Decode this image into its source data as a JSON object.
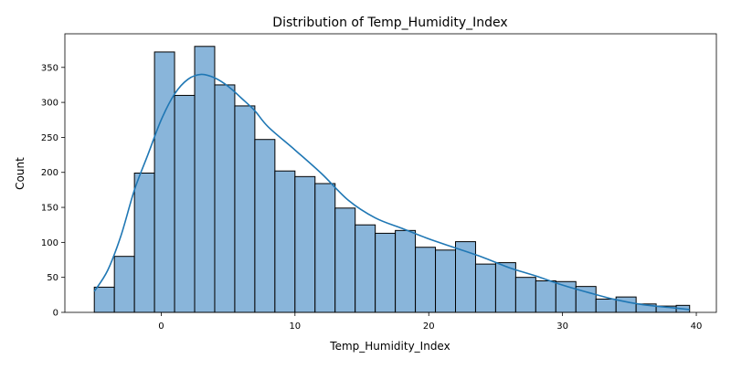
{
  "chart_data": {
    "type": "bar",
    "title": "Distribution of Temp_Humidity_Index",
    "xlabel": "Temp_Humidity_Index",
    "ylabel": "Count",
    "xlim": [
      -7.2,
      41.5
    ],
    "ylim": [
      0,
      398
    ],
    "x_ticks": [
      0,
      10,
      20,
      30,
      40
    ],
    "y_ticks": [
      0,
      50,
      100,
      150,
      200,
      250,
      300,
      350
    ],
    "grid": false,
    "legend": "none",
    "bins": {
      "edges": [
        -5.0,
        -3.5,
        -2.0,
        -0.5,
        1.0,
        2.5,
        4.0,
        5.5,
        7.0,
        8.5,
        10.0,
        11.5,
        13.0,
        14.5,
        16.0,
        17.5,
        19.0,
        20.5,
        22.0,
        23.5,
        25.0,
        26.5,
        28.0,
        29.5,
        31.0,
        32.5,
        34.0,
        35.5,
        37.0,
        38.5,
        39.5
      ],
      "counts": [
        36,
        80,
        199,
        372,
        310,
        380,
        325,
        295,
        247,
        202,
        194,
        184,
        149,
        125,
        113,
        117,
        93,
        89,
        101,
        69,
        71,
        50,
        45,
        44,
        37,
        19,
        22,
        12,
        9,
        10
      ]
    },
    "kde": {
      "x": [
        -5,
        -4,
        -3,
        -2,
        -1,
        0,
        1,
        2,
        3,
        4,
        5,
        6,
        7,
        8,
        10,
        12,
        14,
        16,
        18,
        20,
        22,
        24,
        26,
        28,
        30,
        32,
        34,
        36,
        38,
        39.5
      ],
      "y": [
        30,
        60,
        110,
        175,
        225,
        275,
        312,
        333,
        340,
        335,
        323,
        306,
        288,
        265,
        232,
        198,
        160,
        135,
        120,
        105,
        92,
        79,
        64,
        52,
        39,
        28,
        18,
        11,
        7,
        4
      ]
    },
    "colors": {
      "bar_fill": "#89b5da",
      "bar_edge": "#000000",
      "kde_line": "#1f77b4",
      "axes": "#000000"
    }
  }
}
